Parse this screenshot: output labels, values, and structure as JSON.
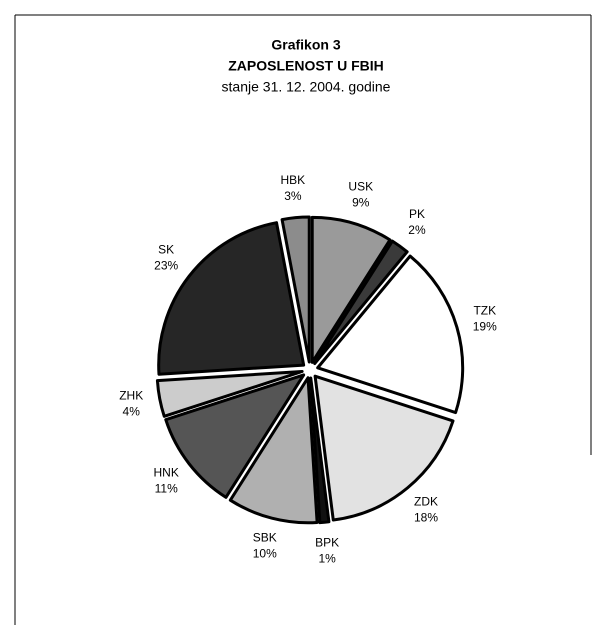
{
  "chart_data": {
    "type": "pie",
    "title": "Grafikon 3",
    "subtitle": "ZAPOSLENOST U FBIH",
    "note": "stanje 31. 12. 2004. godine",
    "categories": [
      "USK",
      "PK",
      "TZK",
      "ZDK",
      "BPK",
      "SBK",
      "HNK",
      "ZHK",
      "SK",
      "HBK"
    ],
    "values": [
      9,
      2,
      19,
      18,
      1,
      10,
      11,
      4,
      23,
      3
    ],
    "value_labels": [
      "9%",
      "2%",
      "19%",
      "18%",
      "1%",
      "10%",
      "11%",
      "4%",
      "23%",
      "3%"
    ],
    "colors": [
      "#9a9a9a",
      "#3a3a3a",
      "#ffffff",
      "#e2e2e2",
      "#111111",
      "#b0b0b0",
      "#555555",
      "#cccccc",
      "#262626",
      "#8c8c8c"
    ]
  }
}
